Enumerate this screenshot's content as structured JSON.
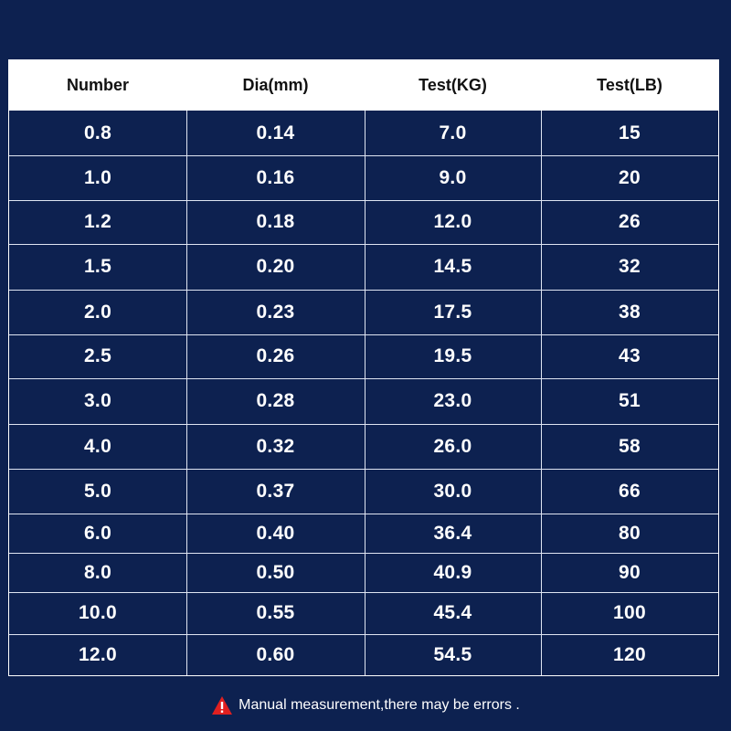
{
  "columns": [
    "Number",
    "Dia(mm)",
    "Test(KG)",
    "Test(LB)"
  ],
  "rows": [
    [
      "0.8",
      "0.14",
      "7.0",
      "15"
    ],
    [
      "1.0",
      "0.16",
      "9.0",
      "20"
    ],
    [
      "1.2",
      "0.18",
      "12.0",
      "26"
    ],
    [
      "1.5",
      "0.20",
      "14.5",
      "32"
    ],
    [
      "2.0",
      "0.23",
      "17.5",
      "38"
    ],
    [
      "2.5",
      "0.26",
      "19.5",
      "43"
    ],
    [
      "3.0",
      "0.28",
      "23.0",
      "51"
    ],
    [
      "4.0",
      "0.32",
      "26.0",
      "58"
    ],
    [
      "5.0",
      "0.37",
      "30.0",
      "66"
    ],
    [
      "6.0",
      "0.40",
      "36.4",
      "80"
    ],
    [
      "8.0",
      "0.50",
      "40.9",
      "90"
    ],
    [
      "10.0",
      "0.55",
      "45.4",
      "100"
    ],
    [
      "12.0",
      "0.60",
      "54.5",
      "120"
    ]
  ],
  "footer": {
    "icon": "warning-icon",
    "text": "Manual measurement,there may be errors ."
  },
  "colors": {
    "background": "#0d2150",
    "header_background": "#ffffff",
    "grid_lines": "#dfe5f2",
    "warning_icon": "#e02020"
  }
}
